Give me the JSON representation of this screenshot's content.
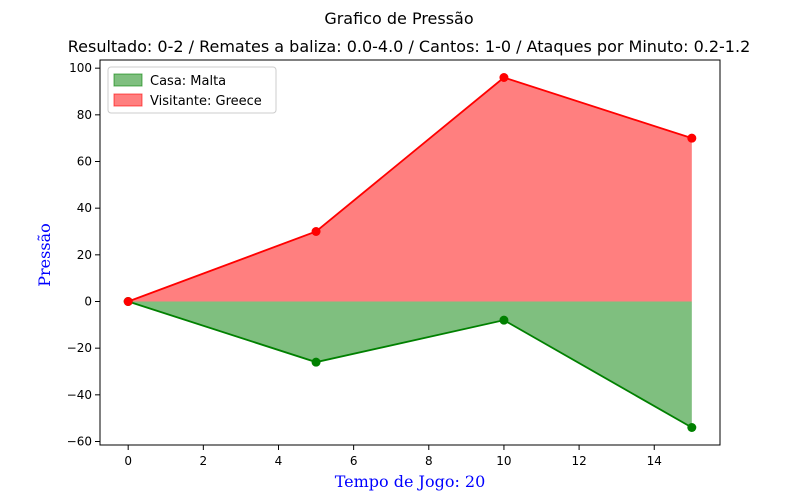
{
  "chart_data": {
    "type": "line",
    "title": "Grafico de Pressão",
    "subtitle": "Resultado: 0-2 / Remates a baliza: 0.0-4.0 / Cantos: 1-0 / Ataques por Minuto: 0.2-1.2",
    "xlabel": "Tempo de Jogo: 20",
    "ylabel": "Pressão",
    "axis_label_color": "#0000ff",
    "xlim": [
      -0.75,
      15.75
    ],
    "ylim": [
      -61.5,
      103.5
    ],
    "xticks": [
      0,
      2,
      4,
      6,
      8,
      10,
      12,
      14
    ],
    "yticks": [
      -60,
      -40,
      -20,
      0,
      20,
      40,
      60,
      80,
      100
    ],
    "grid": false,
    "legend_position": "top-left",
    "x": [
      0,
      5,
      10,
      15
    ],
    "series": [
      {
        "name": "Casa: Malta",
        "values": [
          0,
          -26,
          -8,
          -54
        ],
        "color": "#008000",
        "fill": "#008000"
      },
      {
        "name": "Visitante: Greece",
        "values": [
          0,
          30,
          96,
          70
        ],
        "color": "#ff0000",
        "fill": "#ff0000"
      }
    ]
  }
}
